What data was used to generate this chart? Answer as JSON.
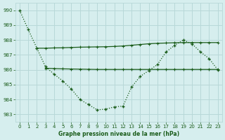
{
  "line1_x": [
    0,
    1,
    2,
    3,
    4,
    5,
    6,
    7,
    8,
    9,
    10,
    11,
    12,
    13,
    14,
    15,
    16,
    17,
    18,
    19,
    20,
    21,
    22,
    23
  ],
  "line1_y": [
    990.0,
    988.7,
    987.45,
    986.2,
    985.7,
    985.25,
    984.7,
    984.0,
    983.65,
    983.3,
    983.35,
    983.5,
    983.55,
    984.85,
    985.55,
    985.95,
    986.35,
    987.2,
    987.65,
    988.0,
    987.75,
    987.2,
    986.75,
    986.0
  ],
  "line2_x": [
    2,
    3,
    4,
    5,
    6,
    7,
    8,
    9,
    10,
    11,
    12,
    13,
    14,
    15,
    16,
    17,
    18,
    19,
    20,
    21,
    22,
    23
  ],
  "line2_y": [
    987.45,
    987.45,
    987.47,
    987.48,
    987.5,
    987.52,
    987.53,
    987.54,
    987.55,
    987.57,
    987.6,
    987.65,
    987.7,
    987.75,
    987.78,
    987.8,
    987.82,
    987.83,
    987.83,
    987.83,
    987.83,
    987.83
  ],
  "line3_x": [
    3,
    4,
    5,
    6,
    7,
    8,
    9,
    10,
    11,
    12,
    13,
    14,
    15,
    16,
    17,
    18,
    19,
    20,
    21,
    22,
    23
  ],
  "line3_y": [
    986.1,
    986.08,
    986.06,
    986.05,
    986.04,
    986.03,
    986.02,
    986.02,
    986.02,
    986.02,
    986.02,
    986.02,
    986.02,
    986.02,
    986.02,
    986.02,
    986.02,
    986.02,
    986.02,
    986.02,
    986.02
  ],
  "line_color": "#1a5c1a",
  "bg_color": "#d6eeee",
  "grid_color": "#b8d8d8",
  "xlabel": "Graphe pression niveau de la mer (hPa)",
  "ylim": [
    982.5,
    990.5
  ],
  "xlim": [
    -0.5,
    23.5
  ],
  "yticks": [
    983,
    984,
    985,
    986,
    987,
    988,
    989,
    990
  ],
  "xticks": [
    0,
    1,
    2,
    3,
    4,
    5,
    6,
    7,
    8,
    9,
    10,
    11,
    12,
    13,
    14,
    15,
    16,
    17,
    18,
    19,
    20,
    21,
    22,
    23
  ]
}
